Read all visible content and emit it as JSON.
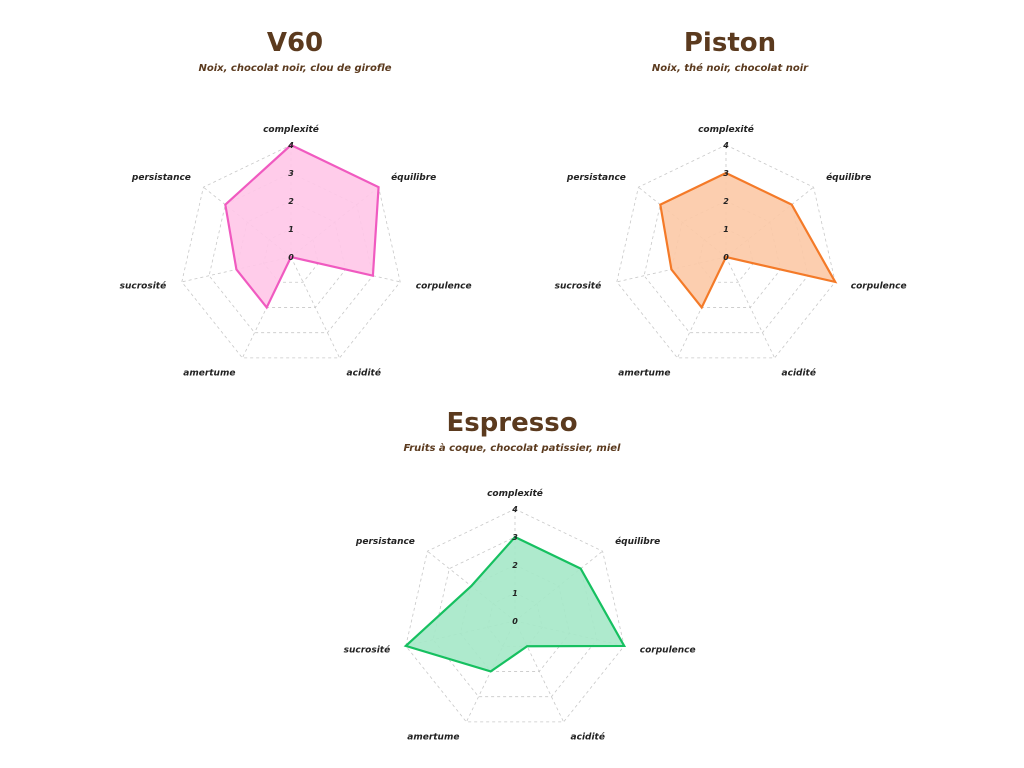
{
  "chart_data": [
    {
      "type": "radar",
      "title": "V60",
      "subtitle": "Noix, chocolat noir, clou de girofle",
      "axes": [
        "complexité",
        "équilibre",
        "corpulence",
        "acidité",
        "amertume",
        "sucrosité",
        "persistance"
      ],
      "values": [
        4,
        4,
        3,
        0,
        2,
        2,
        3
      ],
      "rlim": [
        0,
        4
      ],
      "ticks": [
        "0",
        "1",
        "2",
        "3",
        "4"
      ],
      "grid": true,
      "color": "#f05ac0",
      "fill": "#ffc6e8"
    },
    {
      "type": "radar",
      "title": "Piston",
      "subtitle": "Noix, thé noir, chocolat noir",
      "axes": [
        "complexité",
        "équilibre",
        "corpulence",
        "acidité",
        "amertume",
        "sucrosité",
        "persistance"
      ],
      "values": [
        3,
        3,
        4,
        0,
        2,
        2,
        3
      ],
      "rlim": [
        0,
        4
      ],
      "ticks": [
        "0",
        "1",
        "2",
        "3",
        "4"
      ],
      "grid": true,
      "color": "#f47a28",
      "fill": "#fcc9a6"
    },
    {
      "type": "radar",
      "title": "Espresso",
      "subtitle": "Fruits à coque, chocolat patissier, miel",
      "axes": [
        "complexité",
        "équilibre",
        "corpulence",
        "acidité",
        "amertume",
        "sucrosité",
        "persistance"
      ],
      "values": [
        3,
        3,
        4,
        1,
        2,
        4,
        2
      ],
      "rlim": [
        0,
        4
      ],
      "ticks": [
        "0",
        "1",
        "2",
        "3",
        "4"
      ],
      "grid": true,
      "color": "#16c060",
      "fill": "#a5e8c8"
    }
  ]
}
